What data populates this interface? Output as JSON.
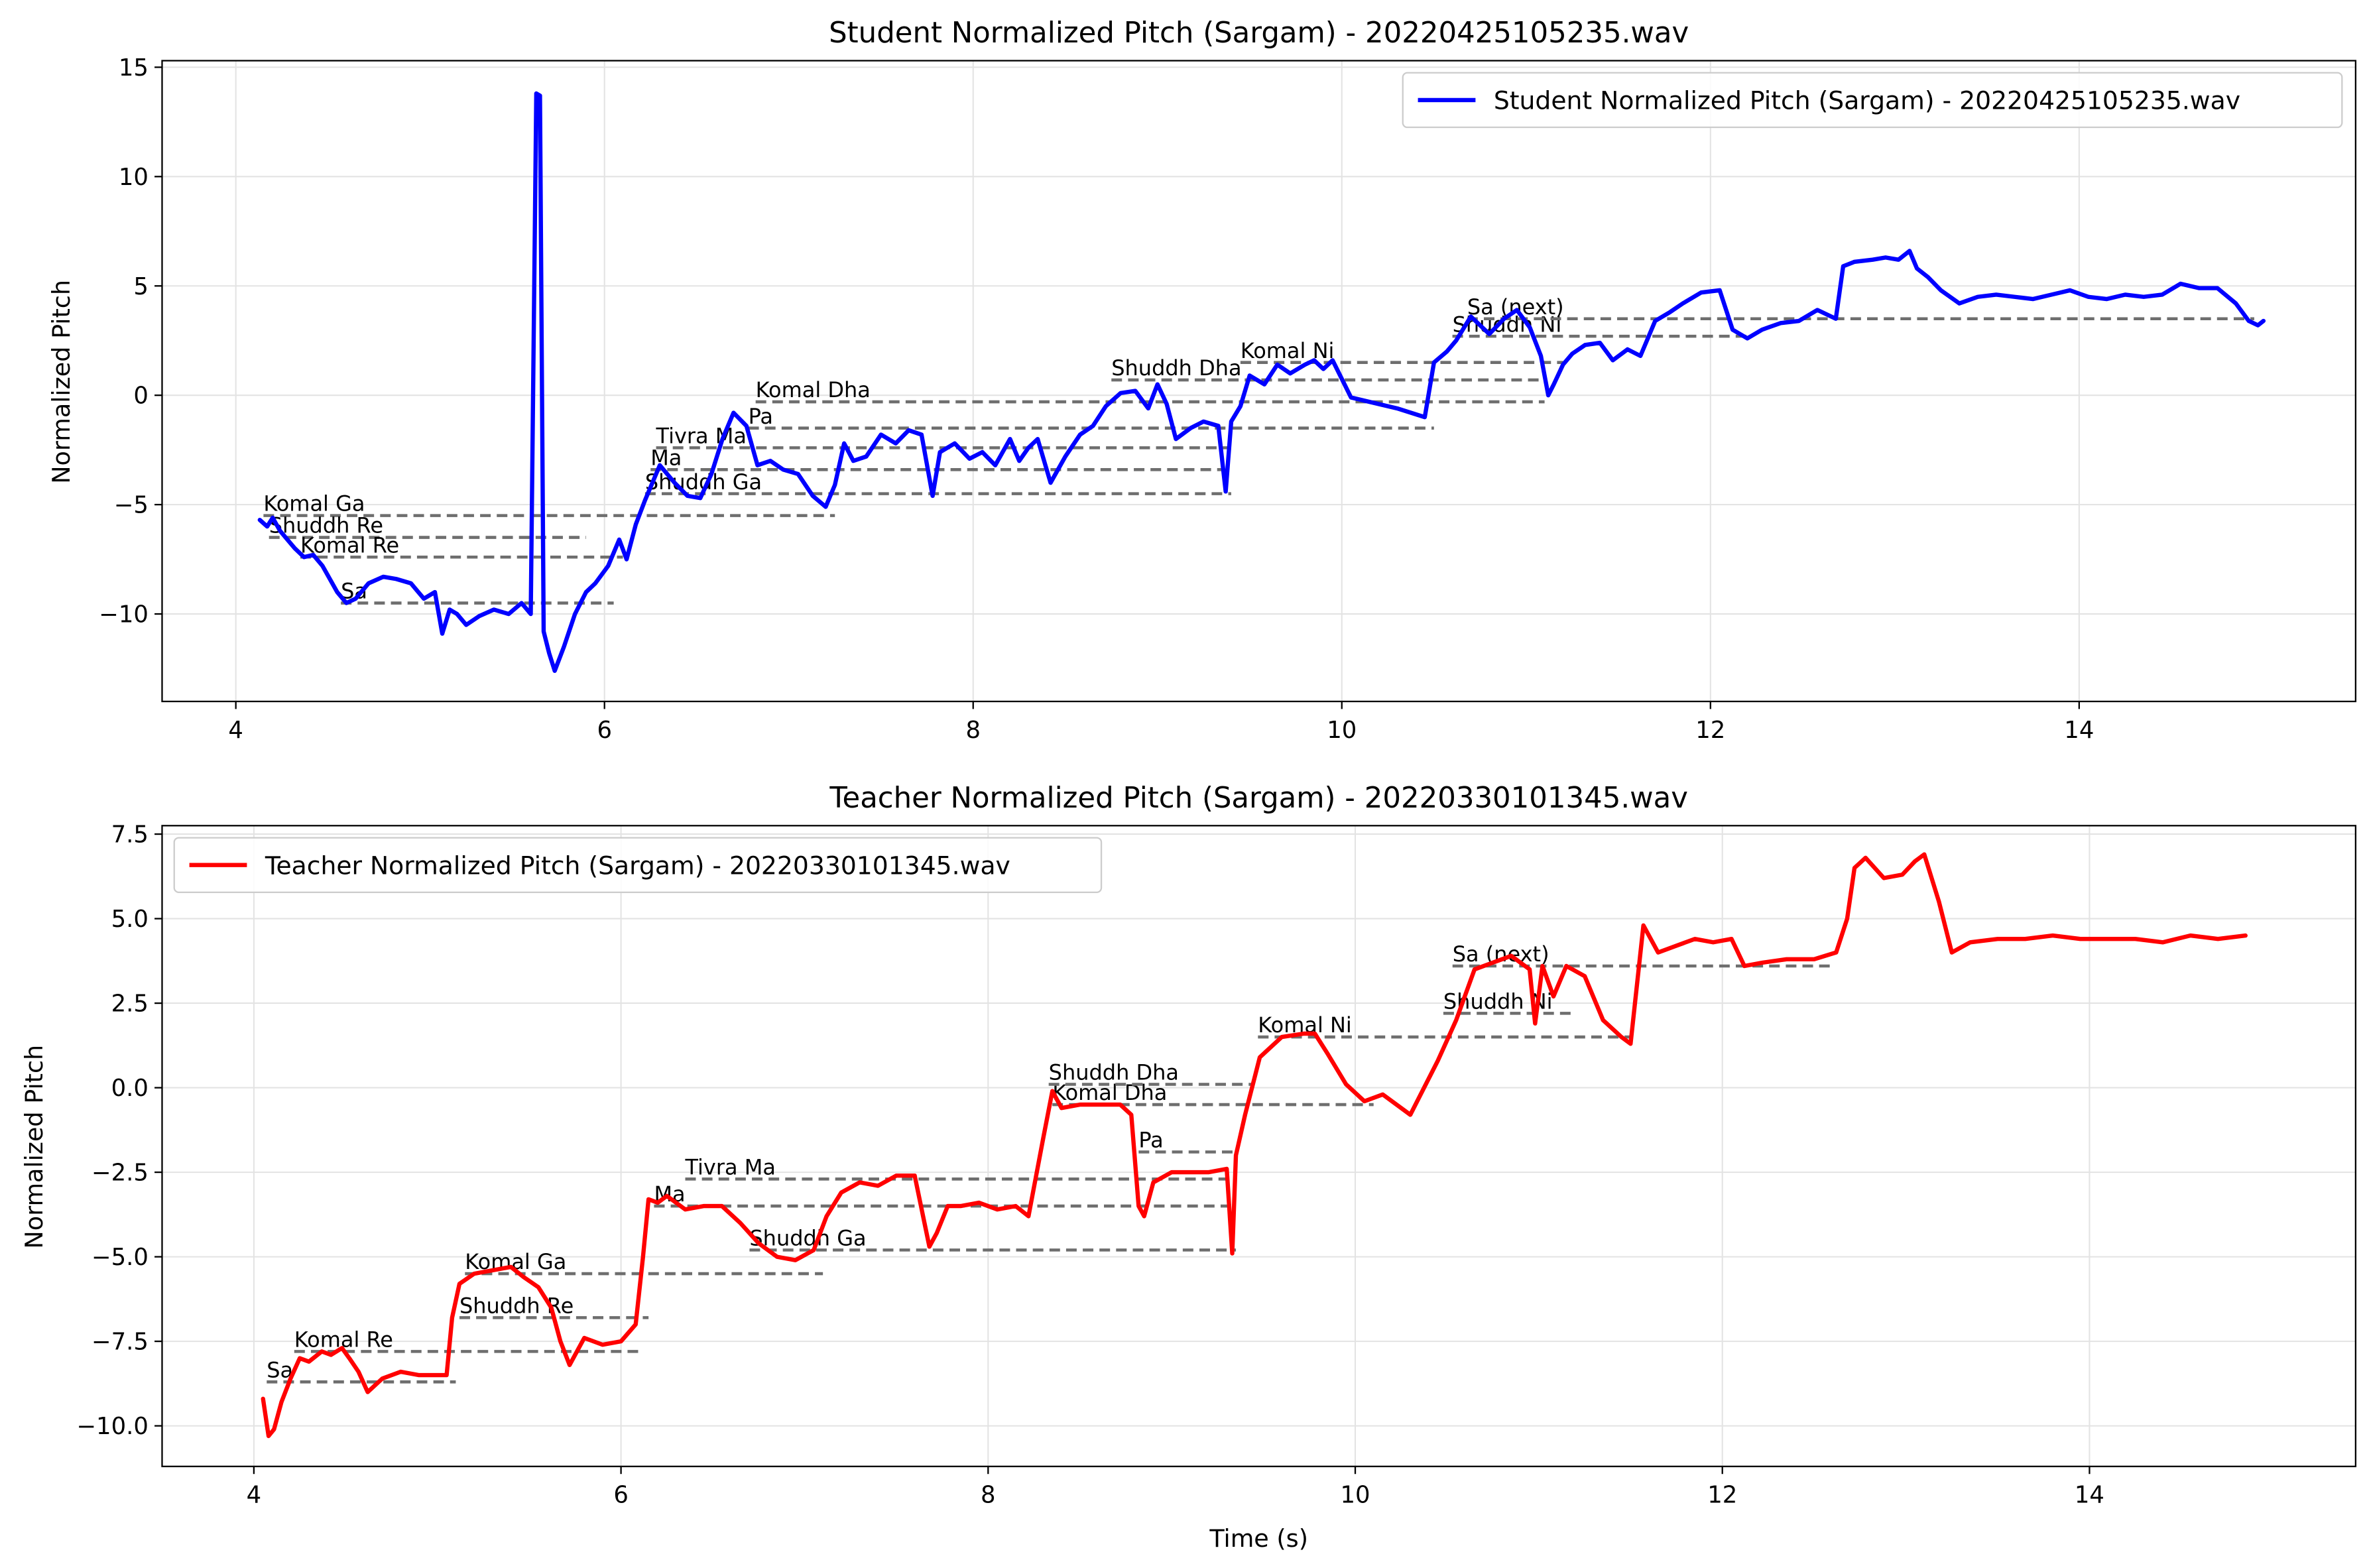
{
  "chart_data": [
    {
      "type": "line",
      "title": "Student Normalized Pitch (Sargam) - 20220425105235.wav",
      "xlabel": "",
      "ylabel": "Normalized Pitch",
      "xlim": [
        3.6,
        15.5
      ],
      "ylim": [
        -14,
        15.3
      ],
      "xticks": [
        4,
        6,
        8,
        10,
        12,
        14
      ],
      "xtick_labels": [
        "4",
        "6",
        "8",
        "10",
        "12",
        "14"
      ],
      "yticks": [
        -10,
        -5,
        0,
        5,
        10,
        15
      ],
      "ytick_labels": [
        "−10",
        "−5",
        "0",
        "5",
        "10",
        "15"
      ],
      "grid": true,
      "legend": "top-right",
      "series": [
        {
          "name": "Student Normalized Pitch (Sargam) - 20220425105235.wav",
          "color": "#0000ff",
          "x": [
            4.13,
            4.17,
            4.2,
            4.24,
            4.28,
            4.32,
            4.37,
            4.42,
            4.47,
            4.55,
            4.6,
            4.65,
            4.72,
            4.8,
            4.87,
            4.95,
            5.02,
            5.08,
            5.12,
            5.16,
            5.2,
            5.25,
            5.32,
            5.4,
            5.48,
            5.55,
            5.6,
            5.63,
            5.65,
            5.67,
            5.7,
            5.73,
            5.78,
            5.84,
            5.9,
            5.95,
            6.02,
            6.08,
            6.12,
            6.17,
            6.22,
            6.3,
            6.38,
            6.45,
            6.52,
            6.58,
            6.64,
            6.7,
            6.77,
            6.83,
            6.9,
            6.97,
            7.05,
            7.13,
            7.2,
            7.25,
            7.3,
            7.35,
            7.42,
            7.5,
            7.58,
            7.65,
            7.72,
            7.78,
            7.82,
            7.9,
            7.98,
            8.05,
            8.12,
            8.2,
            8.25,
            8.3,
            8.35,
            8.42,
            8.5,
            8.58,
            8.65,
            8.72,
            8.8,
            8.88,
            8.95,
            9.0,
            9.05,
            9.1,
            9.18,
            9.25,
            9.33,
            9.37,
            9.4,
            9.45,
            9.5,
            9.58,
            9.65,
            9.72,
            9.8,
            9.85,
            9.9,
            9.95,
            10.05,
            10.15,
            10.3,
            10.45,
            10.5,
            10.57,
            10.62,
            10.7,
            10.8,
            10.88,
            10.95,
            11.02,
            11.08,
            11.12,
            11.15,
            11.2,
            11.25,
            11.32,
            11.4,
            11.47,
            11.55,
            11.62,
            11.7,
            11.78,
            11.85,
            11.95,
            12.05,
            12.12,
            12.2,
            12.28,
            12.38,
            12.48,
            12.58,
            12.68,
            12.72,
            12.78,
            12.88,
            12.95,
            13.02,
            13.08,
            13.12,
            13.18,
            13.25,
            13.35,
            13.45,
            13.55,
            13.65,
            13.75,
            13.85,
            13.95,
            14.05,
            14.15,
            14.25,
            14.35,
            14.45,
            14.55,
            14.65,
            14.75,
            14.85,
            14.92,
            14.97,
            15.0
          ],
          "y": [
            -5.7,
            -6.0,
            -5.6,
            -6.2,
            -6.6,
            -7.0,
            -7.4,
            -7.3,
            -7.8,
            -9.0,
            -9.5,
            -9.3,
            -8.6,
            -8.3,
            -8.4,
            -8.6,
            -9.3,
            -9.0,
            -10.9,
            -9.8,
            -10.0,
            -10.5,
            -10.1,
            -9.8,
            -10.0,
            -9.5,
            -10.0,
            13.8,
            13.7,
            -10.8,
            -11.8,
            -12.6,
            -11.5,
            -10.0,
            -9.0,
            -8.6,
            -7.8,
            -6.6,
            -7.5,
            -5.9,
            -4.8,
            -3.2,
            -4.0,
            -4.6,
            -4.7,
            -3.6,
            -2.0,
            -0.8,
            -1.4,
            -3.2,
            -3.0,
            -3.4,
            -3.6,
            -4.6,
            -5.1,
            -4.1,
            -2.2,
            -3.0,
            -2.8,
            -1.8,
            -2.2,
            -1.6,
            -1.8,
            -4.6,
            -2.6,
            -2.2,
            -2.9,
            -2.6,
            -3.2,
            -2.0,
            -3.0,
            -2.4,
            -2.0,
            -4.0,
            -2.8,
            -1.8,
            -1.4,
            -0.5,
            0.1,
            0.2,
            -0.6,
            0.5,
            -0.4,
            -2.0,
            -1.5,
            -1.2,
            -1.4,
            -4.4,
            -1.2,
            -0.5,
            0.9,
            0.5,
            1.4,
            1.0,
            1.4,
            1.6,
            1.2,
            1.6,
            -0.1,
            -0.3,
            -0.6,
            -1.0,
            1.5,
            2.0,
            2.5,
            3.6,
            2.8,
            3.5,
            3.9,
            3.1,
            1.8,
            0.0,
            0.5,
            1.4,
            1.9,
            2.3,
            2.4,
            1.6,
            2.1,
            1.8,
            3.4,
            3.8,
            4.2,
            4.7,
            4.8,
            3.0,
            2.6,
            3.0,
            3.3,
            3.4,
            3.9,
            3.5,
            5.9,
            6.1,
            6.2,
            6.3,
            6.2,
            6.6,
            5.8,
            5.4,
            4.8,
            4.2,
            4.5,
            4.6,
            4.5,
            4.4,
            4.6,
            4.8,
            4.5,
            4.4,
            4.6,
            4.5,
            4.6,
            5.1,
            4.9,
            4.9,
            4.2,
            3.4,
            3.2,
            3.4
          ]
        }
      ],
      "reference_lines": [
        {
          "label": "Komal Ga",
          "y": -5.5,
          "x_start": 4.15,
          "x_end": 7.25,
          "label_x": 4.15
        },
        {
          "label": "Shuddh Re",
          "y": -6.5,
          "x_start": 4.18,
          "x_end": 5.9,
          "label_x": 4.18
        },
        {
          "label": "Komal Re",
          "y": -7.4,
          "x_start": 4.35,
          "x_end": 6.1,
          "label_x": 4.35
        },
        {
          "label": "Sa",
          "y": -9.5,
          "x_start": 4.57,
          "x_end": 6.05,
          "label_x": 4.57
        },
        {
          "label": "Shuddh Ga",
          "y": -4.5,
          "x_start": 6.22,
          "x_end": 9.4,
          "label_x": 6.22
        },
        {
          "label": "Ma",
          "y": -3.4,
          "x_start": 6.25,
          "x_end": 9.35,
          "label_x": 6.25
        },
        {
          "label": "Tivra Ma",
          "y": -2.4,
          "x_start": 6.28,
          "x_end": 9.4,
          "label_x": 6.28
        },
        {
          "label": "Pa",
          "y": -1.5,
          "x_start": 6.78,
          "x_end": 10.5,
          "label_x": 6.78
        },
        {
          "label": "Komal Dha",
          "y": -0.3,
          "x_start": 6.82,
          "x_end": 11.1,
          "label_x": 6.82
        },
        {
          "label": "Shuddh Dha",
          "y": 0.7,
          "x_start": 8.75,
          "x_end": 11.1,
          "label_x": 8.75
        },
        {
          "label": "Komal Ni",
          "y": 1.5,
          "x_start": 9.45,
          "x_end": 11.2,
          "label_x": 9.45
        },
        {
          "label": "Shuddh Ni",
          "y": 2.7,
          "x_start": 10.6,
          "x_end": 12.2,
          "label_x": 10.6
        },
        {
          "label": "Sa (next)",
          "y": 3.5,
          "x_start": 10.68,
          "x_end": 14.95,
          "label_x": 10.68
        }
      ]
    },
    {
      "type": "line",
      "title": "Teacher Normalized Pitch (Sargam) - 20220330101345.wav",
      "xlabel": "Time (s)",
      "ylabel": "Normalized Pitch",
      "xlim": [
        3.5,
        15.45
      ],
      "ylim": [
        -11.2,
        7.75
      ],
      "xticks": [
        4,
        6,
        8,
        10,
        12,
        14
      ],
      "xtick_labels": [
        "4",
        "6",
        "8",
        "10",
        "12",
        "14"
      ],
      "yticks": [
        -10,
        -7.5,
        -5,
        -2.5,
        0,
        2.5,
        5,
        7.5
      ],
      "ytick_labels": [
        "−10.0",
        "−7.5",
        "−5.0",
        "−2.5",
        "0.0",
        "2.5",
        "5.0",
        "7.5"
      ],
      "grid": true,
      "legend": "top-left",
      "series": [
        {
          "name": "Teacher Normalized Pitch (Sargam) - 20220330101345.wav",
          "color": "#ff0000",
          "x": [
            4.05,
            4.08,
            4.11,
            4.15,
            4.2,
            4.25,
            4.3,
            4.37,
            4.42,
            4.48,
            4.52,
            4.57,
            4.62,
            4.7,
            4.8,
            4.9,
            5.0,
            5.05,
            5.08,
            5.12,
            5.2,
            5.3,
            5.4,
            5.47,
            5.55,
            5.62,
            5.67,
            5.72,
            5.8,
            5.9,
            6.0,
            6.08,
            6.12,
            6.15,
            6.2,
            6.25,
            6.35,
            6.45,
            6.55,
            6.65,
            6.75,
            6.85,
            6.95,
            7.05,
            7.12,
            7.2,
            7.3,
            7.4,
            7.5,
            7.6,
            7.68,
            7.72,
            7.78,
            7.85,
            7.95,
            8.05,
            8.15,
            8.22,
            8.3,
            8.35,
            8.4,
            8.5,
            8.6,
            8.72,
            8.78,
            8.82,
            8.85,
            8.9,
            9.0,
            9.1,
            9.2,
            9.3,
            9.33,
            9.35,
            9.4,
            9.48,
            9.6,
            9.72,
            9.78,
            9.85,
            9.95,
            10.05,
            10.15,
            10.3,
            10.45,
            10.55,
            10.65,
            10.75,
            10.85,
            10.95,
            10.98,
            11.02,
            11.08,
            11.15,
            11.25,
            11.35,
            11.45,
            11.5,
            11.57,
            11.65,
            11.75,
            11.85,
            11.95,
            12.05,
            12.12,
            12.22,
            12.35,
            12.5,
            12.62,
            12.68,
            12.72,
            12.78,
            12.88,
            12.98,
            13.05,
            13.1,
            13.18,
            13.25,
            13.35,
            13.5,
            13.65,
            13.8,
            13.95,
            14.1,
            14.25,
            14.4,
            14.55,
            14.7,
            14.85
          ],
          "y": [
            -9.2,
            -10.3,
            -10.1,
            -9.3,
            -8.6,
            -8.0,
            -8.1,
            -7.8,
            -7.9,
            -7.7,
            -8.0,
            -8.4,
            -9.0,
            -8.6,
            -8.4,
            -8.5,
            -8.5,
            -8.5,
            -6.8,
            -5.8,
            -5.5,
            -5.4,
            -5.3,
            -5.6,
            -5.9,
            -6.5,
            -7.5,
            -8.2,
            -7.4,
            -7.6,
            -7.5,
            -7.0,
            -5.0,
            -3.3,
            -3.4,
            -3.2,
            -3.6,
            -3.5,
            -3.5,
            -4.0,
            -4.6,
            -5.0,
            -5.1,
            -4.8,
            -3.8,
            -3.1,
            -2.8,
            -2.9,
            -2.6,
            -2.6,
            -4.7,
            -4.3,
            -3.5,
            -3.5,
            -3.4,
            -3.6,
            -3.5,
            -3.8,
            -1.5,
            -0.1,
            -0.6,
            -0.5,
            -0.5,
            -0.5,
            -0.8,
            -3.5,
            -3.8,
            -2.8,
            -2.5,
            -2.5,
            -2.5,
            -2.4,
            -4.9,
            -2.0,
            -0.8,
            0.9,
            1.5,
            1.6,
            1.6,
            1.0,
            0.1,
            -0.4,
            -0.2,
            -0.8,
            0.8,
            2.0,
            3.5,
            3.7,
            3.9,
            3.5,
            1.9,
            3.6,
            2.7,
            3.6,
            3.3,
            2.0,
            1.5,
            1.3,
            4.8,
            4.0,
            4.2,
            4.4,
            4.3,
            4.4,
            3.6,
            3.7,
            3.8,
            3.8,
            4.0,
            5.0,
            6.5,
            6.8,
            6.2,
            6.3,
            6.7,
            6.9,
            5.5,
            4.0,
            4.3,
            4.4,
            4.4,
            4.5,
            4.4,
            4.4,
            4.4,
            4.3,
            4.5,
            4.4,
            4.5
          ]
        }
      ],
      "reference_lines": [
        {
          "label": "Sa",
          "y": -8.7,
          "x_start": 4.07,
          "x_end": 5.1,
          "label_x": 4.07
        },
        {
          "label": "Komal Re",
          "y": -7.8,
          "x_start": 4.22,
          "x_end": 6.1,
          "label_x": 4.22
        },
        {
          "label": "Shuddh Re",
          "y": -6.8,
          "x_start": 5.12,
          "x_end": 6.15,
          "label_x": 5.12
        },
        {
          "label": "Komal Ga",
          "y": -5.5,
          "x_start": 5.15,
          "x_end": 7.1,
          "label_x": 5.15
        },
        {
          "label": "Shuddh Ga",
          "y": -4.8,
          "x_start": 6.7,
          "x_end": 9.35,
          "label_x": 6.7
        },
        {
          "label": "Ma",
          "y": -3.5,
          "x_start": 6.18,
          "x_end": 9.35,
          "label_x": 6.18
        },
        {
          "label": "Tivra Ma",
          "y": -2.7,
          "x_start": 6.35,
          "x_end": 9.35,
          "label_x": 6.35
        },
        {
          "label": "Pa",
          "y": -1.9,
          "x_start": 8.82,
          "x_end": 9.35,
          "label_x": 8.82
        },
        {
          "label": "Komal Dha",
          "y": -0.5,
          "x_start": 8.35,
          "x_end": 10.1,
          "label_x": 8.35
        },
        {
          "label": "Shuddh Dha",
          "y": 0.1,
          "x_start": 8.33,
          "x_end": 9.45,
          "label_x": 8.33
        },
        {
          "label": "Komal Ni",
          "y": 1.5,
          "x_start": 9.47,
          "x_end": 11.5,
          "label_x": 9.47
        },
        {
          "label": "Shuddh Ni",
          "y": 2.2,
          "x_start": 10.48,
          "x_end": 11.2,
          "label_x": 10.48
        },
        {
          "label": "Sa (next)",
          "y": 3.6,
          "x_start": 10.53,
          "x_end": 12.6,
          "label_x": 10.53
        }
      ]
    }
  ]
}
